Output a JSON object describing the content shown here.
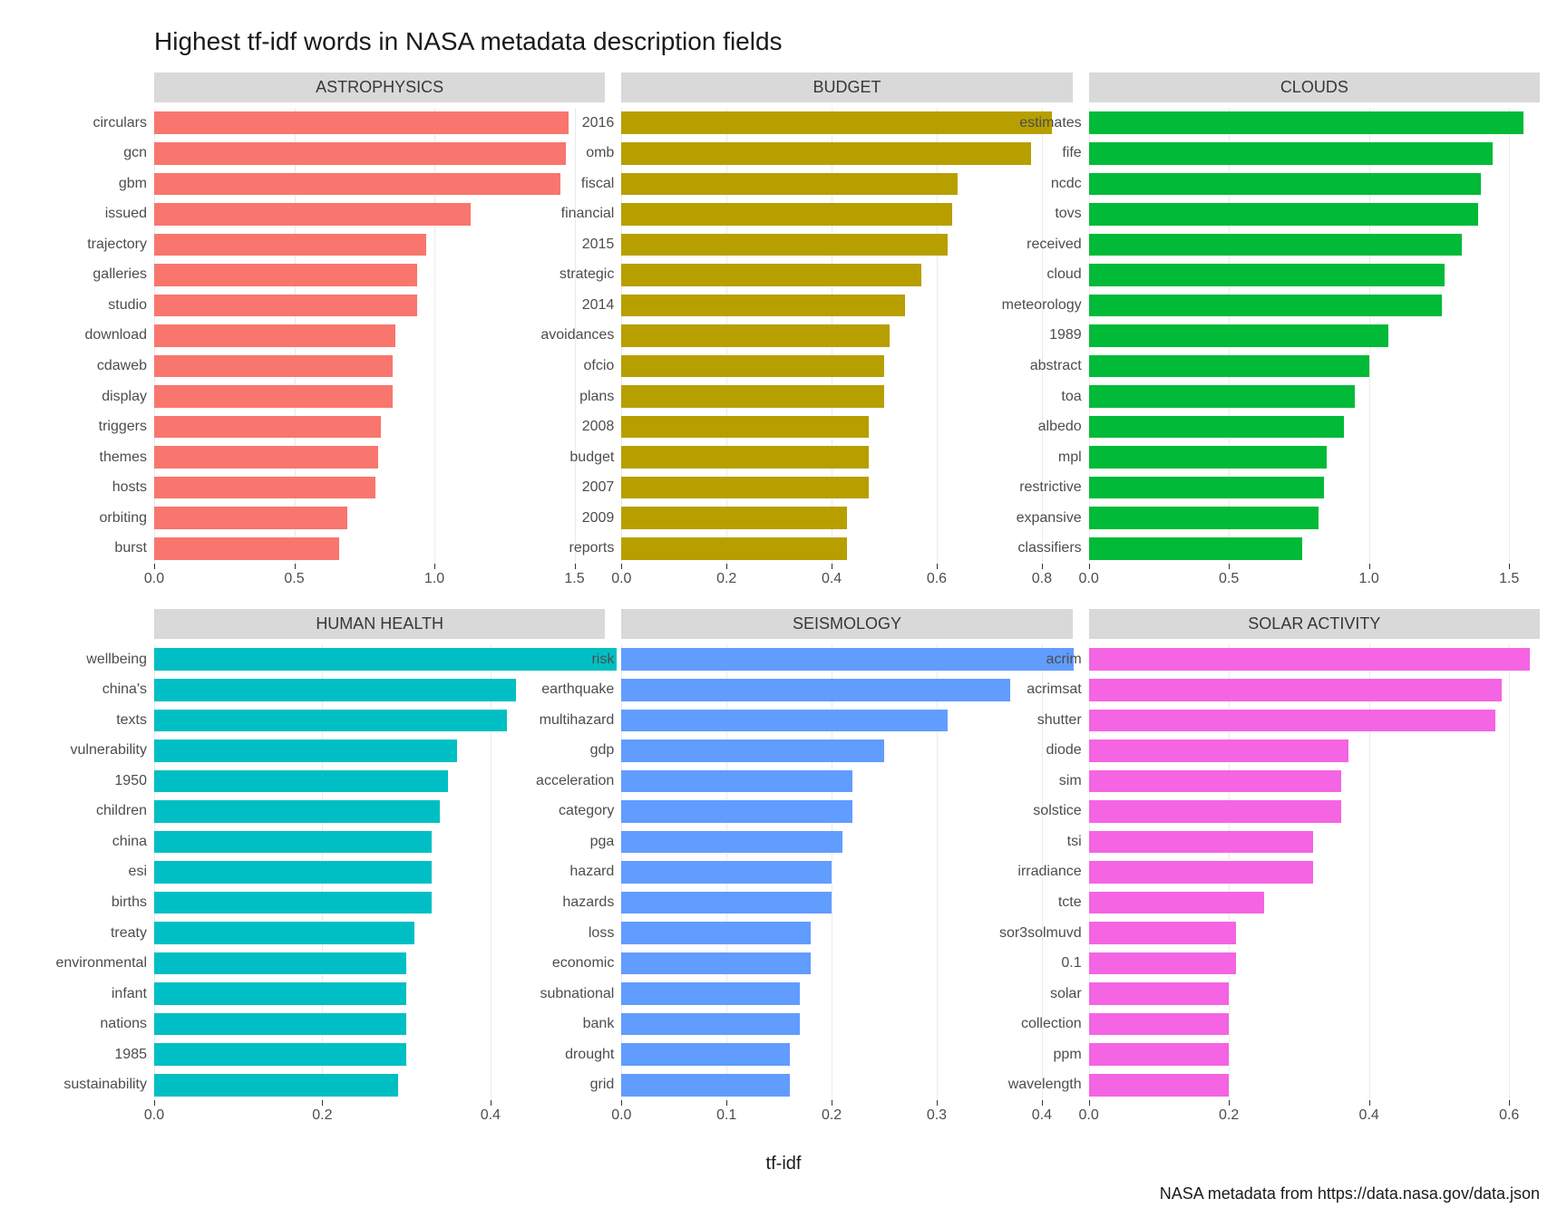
{
  "title": "Highest tf-idf words in NASA metadata description fields",
  "caption": "NASA metadata from https://data.nasa.gov/data.json",
  "x_axis_title": "tf-idf",
  "grid_color": "#ebebeb",
  "strip_bg": "#d9d9d9",
  "strip_fg": "#383838",
  "background_color": "#ffffff",
  "title_fontsize": 28,
  "strip_fontsize": 18,
  "label_fontsize": 16,
  "axis_title_fontsize": 20,
  "caption_fontsize": 18,
  "panels": [
    {
      "name": "ASTROPHYSICS",
      "color": "#f8766d",
      "xmax": 1.5,
      "ticks": [
        0.0,
        0.5,
        1.0,
        1.5
      ],
      "tick_labels": [
        "0.0",
        "0.5",
        "1.0",
        "1.5"
      ],
      "bars": [
        {
          "label": "circulars",
          "value": 1.48
        },
        {
          "label": "gcn",
          "value": 1.47
        },
        {
          "label": "gbm",
          "value": 1.45
        },
        {
          "label": "issued",
          "value": 1.13
        },
        {
          "label": "trajectory",
          "value": 0.97
        },
        {
          "label": "galleries",
          "value": 0.94
        },
        {
          "label": "studio",
          "value": 0.94
        },
        {
          "label": "download",
          "value": 0.86
        },
        {
          "label": "cdaweb",
          "value": 0.85
        },
        {
          "label": "display",
          "value": 0.85
        },
        {
          "label": "triggers",
          "value": 0.81
        },
        {
          "label": "themes",
          "value": 0.8
        },
        {
          "label": "hosts",
          "value": 0.79
        },
        {
          "label": "orbiting",
          "value": 0.69
        },
        {
          "label": "burst",
          "value": 0.66
        }
      ]
    },
    {
      "name": "BUDGET",
      "color": "#b79f00",
      "xmax": 0.8,
      "ticks": [
        0.0,
        0.2,
        0.4,
        0.6,
        0.8
      ],
      "tick_labels": [
        "0.0",
        "0.2",
        "0.4",
        "0.6",
        "0.8"
      ],
      "bars": [
        {
          "label": "2016",
          "value": 0.82
        },
        {
          "label": "omb",
          "value": 0.78
        },
        {
          "label": "fiscal",
          "value": 0.64
        },
        {
          "label": "financial",
          "value": 0.63
        },
        {
          "label": "2015",
          "value": 0.62
        },
        {
          "label": "strategic",
          "value": 0.57
        },
        {
          "label": "2014",
          "value": 0.54
        },
        {
          "label": "avoidances",
          "value": 0.51
        },
        {
          "label": "ofcio",
          "value": 0.5
        },
        {
          "label": "plans",
          "value": 0.5
        },
        {
          "label": "2008",
          "value": 0.47
        },
        {
          "label": "budget",
          "value": 0.47
        },
        {
          "label": "2007",
          "value": 0.47
        },
        {
          "label": "2009",
          "value": 0.43
        },
        {
          "label": "reports",
          "value": 0.43
        }
      ]
    },
    {
      "name": "CLOUDS",
      "color": "#00ba38",
      "xmax": 1.5,
      "ticks": [
        0.0,
        0.5,
        1.0,
        1.5
      ],
      "tick_labels": [
        "0.0",
        "0.5",
        "1.0",
        "1.5"
      ],
      "bars": [
        {
          "label": "estimates",
          "value": 1.55
        },
        {
          "label": "fife",
          "value": 1.44
        },
        {
          "label": "ncdc",
          "value": 1.4
        },
        {
          "label": "tovs",
          "value": 1.39
        },
        {
          "label": "received",
          "value": 1.33
        },
        {
          "label": "cloud",
          "value": 1.27
        },
        {
          "label": "meteorology",
          "value": 1.26
        },
        {
          "label": "1989",
          "value": 1.07
        },
        {
          "label": "abstract",
          "value": 1.0
        },
        {
          "label": "toa",
          "value": 0.95
        },
        {
          "label": "albedo",
          "value": 0.91
        },
        {
          "label": "mpl",
          "value": 0.85
        },
        {
          "label": "restrictive",
          "value": 0.84
        },
        {
          "label": "expansive",
          "value": 0.82
        },
        {
          "label": "classifiers",
          "value": 0.76
        }
      ]
    },
    {
      "name": "HUMAN HEALTH",
      "color": "#00bfc4",
      "xmax": 0.5,
      "ticks": [
        0.0,
        0.2,
        0.4
      ],
      "tick_labels": [
        "0.0",
        "0.2",
        "0.4"
      ],
      "bars": [
        {
          "label": "wellbeing",
          "value": 0.55
        },
        {
          "label": "china's",
          "value": 0.43
        },
        {
          "label": "texts",
          "value": 0.42
        },
        {
          "label": "vulnerability",
          "value": 0.36
        },
        {
          "label": "1950",
          "value": 0.35
        },
        {
          "label": "children",
          "value": 0.34
        },
        {
          "label": "china",
          "value": 0.33
        },
        {
          "label": "esi",
          "value": 0.33
        },
        {
          "label": "births",
          "value": 0.33
        },
        {
          "label": "treaty",
          "value": 0.31
        },
        {
          "label": "environmental",
          "value": 0.3
        },
        {
          "label": "infant",
          "value": 0.3
        },
        {
          "label": "nations",
          "value": 0.3
        },
        {
          "label": "1985",
          "value": 0.3
        },
        {
          "label": "sustainability",
          "value": 0.29
        }
      ]
    },
    {
      "name": "SEISMOLOGY",
      "color": "#619cff",
      "xmax": 0.4,
      "ticks": [
        0.0,
        0.1,
        0.2,
        0.3,
        0.4
      ],
      "tick_labels": [
        "0.0",
        "0.1",
        "0.2",
        "0.3",
        "0.4"
      ],
      "bars": [
        {
          "label": "risk",
          "value": 0.43
        },
        {
          "label": "earthquake",
          "value": 0.37
        },
        {
          "label": "multihazard",
          "value": 0.31
        },
        {
          "label": "gdp",
          "value": 0.25
        },
        {
          "label": "acceleration",
          "value": 0.22
        },
        {
          "label": "category",
          "value": 0.22
        },
        {
          "label": "pga",
          "value": 0.21
        },
        {
          "label": "hazard",
          "value": 0.2
        },
        {
          "label": "hazards",
          "value": 0.2
        },
        {
          "label": "loss",
          "value": 0.18
        },
        {
          "label": "economic",
          "value": 0.18
        },
        {
          "label": "subnational",
          "value": 0.17
        },
        {
          "label": "bank",
          "value": 0.17
        },
        {
          "label": "drought",
          "value": 0.16
        },
        {
          "label": "grid",
          "value": 0.16
        }
      ]
    },
    {
      "name": "SOLAR ACTIVITY",
      "color": "#f564e3",
      "xmax": 0.6,
      "ticks": [
        0.0,
        0.2,
        0.4,
        0.6
      ],
      "tick_labels": [
        "0.0",
        "0.2",
        "0.4",
        "0.6"
      ],
      "bars": [
        {
          "label": "acrim",
          "value": 0.63
        },
        {
          "label": "acrimsat",
          "value": 0.59
        },
        {
          "label": "shutter",
          "value": 0.58
        },
        {
          "label": "diode",
          "value": 0.37
        },
        {
          "label": "sim",
          "value": 0.36
        },
        {
          "label": "solstice",
          "value": 0.36
        },
        {
          "label": "tsi",
          "value": 0.32
        },
        {
          "label": "irradiance",
          "value": 0.32
        },
        {
          "label": "tcte",
          "value": 0.25
        },
        {
          "label": "sor3solmuvd",
          "value": 0.21
        },
        {
          "label": "0.1",
          "value": 0.21
        },
        {
          "label": "solar",
          "value": 0.2
        },
        {
          "label": "collection",
          "value": 0.2
        },
        {
          "label": "ppm",
          "value": 0.2
        },
        {
          "label": "wavelength",
          "value": 0.2
        }
      ]
    }
  ]
}
